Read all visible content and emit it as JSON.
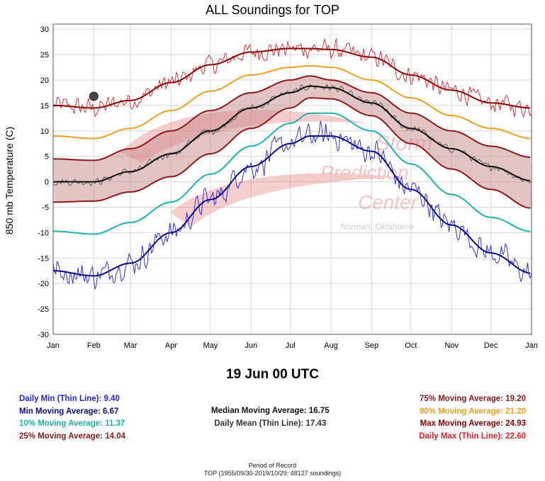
{
  "title": "ALL Soundings for TOP",
  "date_label": "19 Jun 00 UTC",
  "stats_left": [
    {
      "label": "Daily Min (Thin Line): 9.40",
      "color": "#1f1fe6"
    },
    {
      "label": "Min Moving Average: 6.67",
      "color": "#0a0a8c"
    },
    {
      "label": "10% Moving Average: 11.37",
      "color": "#20b2aa"
    },
    {
      "label": "25% Moving Average: 14.04",
      "color": "#8b1a1a"
    }
  ],
  "stats_mid": [
    {
      "label": "Median Moving Average: 16.75",
      "color": "#111111"
    },
    {
      "label": "Daily Mean (Thin Line): 17.43",
      "color": "#333333"
    }
  ],
  "stats_right": [
    {
      "label": "75% Moving Average: 19.20",
      "color": "#8b1a1a"
    },
    {
      "label": "90% Moving Average: 21.20",
      "color": "#f0a020"
    },
    {
      "label": "Max Moving Average: 24.93",
      "color": "#8b0000"
    },
    {
      "label": "Daily Max (Thin Line): 22.60",
      "color": "#e8202a"
    }
  ],
  "period_title": "Period of Record",
  "period_text": "TOP (1955/09/30-2019/10/29; 48127 soundings)",
  "watermark": {
    "line1": "Storm",
    "line2": "Prediction",
    "line3": "Center",
    "line4": "Norman, Oklahoma"
  },
  "chart_data": {
    "type": "line",
    "ylabel": "850 mb Temperature (C)",
    "xlabel": "",
    "ylim": [
      -30,
      31
    ],
    "yticks": [
      -30,
      -25,
      -20,
      -15,
      -10,
      -5,
      0,
      5,
      10,
      15,
      20,
      25,
      30
    ],
    "xticks": [
      "Jan",
      "Feb",
      "Mar",
      "Apr",
      "May",
      "Jun",
      "Jul",
      "Aug",
      "Sep",
      "Oct",
      "Nov",
      "Dec",
      "Jan"
    ],
    "x_unit": "day of year",
    "x_range": [
      1,
      366
    ],
    "grid": true,
    "current_point": {
      "day": 32,
      "value": 16.8
    },
    "series": [
      {
        "key": "max_avg",
        "color": "#8b0000",
        "points": [
          [
            1,
            15
          ],
          [
            32,
            14.5
          ],
          [
            60,
            16
          ],
          [
            91,
            19.5
          ],
          [
            121,
            23
          ],
          [
            152,
            25.5
          ],
          [
            182,
            26.2
          ],
          [
            197,
            26.2
          ],
          [
            213,
            26
          ],
          [
            244,
            24.5
          ],
          [
            274,
            21
          ],
          [
            305,
            18
          ],
          [
            335,
            15.5
          ],
          [
            366,
            14.5
          ]
        ]
      },
      {
        "key": "p90",
        "color": "#f0a020",
        "points": [
          [
            1,
            9
          ],
          [
            32,
            8.5
          ],
          [
            60,
            10.5
          ],
          [
            91,
            14
          ],
          [
            121,
            17.8
          ],
          [
            152,
            21
          ],
          [
            182,
            22.5
          ],
          [
            197,
            22.8
          ],
          [
            213,
            22.5
          ],
          [
            244,
            20
          ],
          [
            274,
            16.5
          ],
          [
            305,
            13
          ],
          [
            335,
            10.5
          ],
          [
            366,
            8.5
          ]
        ]
      },
      {
        "key": "p75",
        "color": "#8b1a1a",
        "points": [
          [
            1,
            4.5
          ],
          [
            32,
            4.2
          ],
          [
            60,
            6.5
          ],
          [
            91,
            10
          ],
          [
            121,
            14
          ],
          [
            152,
            17.5
          ],
          [
            182,
            20
          ],
          [
            197,
            20.8
          ],
          [
            213,
            20
          ],
          [
            244,
            17.5
          ],
          [
            274,
            13.5
          ],
          [
            305,
            10
          ],
          [
            335,
            7
          ],
          [
            366,
            4.8
          ]
        ]
      },
      {
        "key": "median",
        "color": "#111111",
        "points": [
          [
            1,
            0
          ],
          [
            32,
            0
          ],
          [
            60,
            2
          ],
          [
            91,
            5.5
          ],
          [
            121,
            10
          ],
          [
            152,
            14.5
          ],
          [
            182,
            17.5
          ],
          [
            197,
            18.8
          ],
          [
            213,
            18.5
          ],
          [
            244,
            15.5
          ],
          [
            274,
            10.5
          ],
          [
            305,
            6.5
          ],
          [
            335,
            3
          ],
          [
            366,
            0.2
          ]
        ]
      },
      {
        "key": "p25",
        "color": "#8b1a1a",
        "points": [
          [
            1,
            -4
          ],
          [
            32,
            -3.8
          ],
          [
            60,
            -2
          ],
          [
            91,
            1
          ],
          [
            121,
            5.5
          ],
          [
            152,
            10.5
          ],
          [
            182,
            14.5
          ],
          [
            197,
            16.5
          ],
          [
            213,
            16.3
          ],
          [
            244,
            13
          ],
          [
            274,
            7.5
          ],
          [
            305,
            2.5
          ],
          [
            335,
            -1.5
          ],
          [
            366,
            -5.2
          ]
        ]
      },
      {
        "key": "p10",
        "color": "#20b2aa",
        "points": [
          [
            1,
            -9.7
          ],
          [
            32,
            -10.3
          ],
          [
            60,
            -8
          ],
          [
            91,
            -4
          ],
          [
            121,
            1.5
          ],
          [
            152,
            7
          ],
          [
            182,
            11.5
          ],
          [
            197,
            13.5
          ],
          [
            213,
            13.5
          ],
          [
            244,
            10
          ],
          [
            274,
            3.5
          ],
          [
            305,
            -2.5
          ],
          [
            335,
            -7
          ],
          [
            366,
            -9.8
          ]
        ]
      },
      {
        "key": "min_avg",
        "color": "#0a0a8c",
        "points": [
          [
            1,
            -17.5
          ],
          [
            32,
            -18.5
          ],
          [
            60,
            -16
          ],
          [
            91,
            -10
          ],
          [
            121,
            -3.5
          ],
          [
            152,
            3
          ],
          [
            182,
            7.5
          ],
          [
            197,
            9
          ],
          [
            213,
            9
          ],
          [
            244,
            6
          ],
          [
            274,
            -1.5
          ],
          [
            305,
            -8.5
          ],
          [
            335,
            -14
          ],
          [
            366,
            -18
          ]
        ]
      }
    ],
    "daily_thin": [
      {
        "key": "daily_max",
        "color": "#e8202a",
        "base": "max_avg",
        "jitter": 2.4
      },
      {
        "key": "daily_mean",
        "color": "#555555",
        "base": "median",
        "jitter": 0.9
      },
      {
        "key": "daily_min",
        "color": "#1f1fe6",
        "base": "min_avg",
        "jitter": 3.2
      }
    ]
  }
}
